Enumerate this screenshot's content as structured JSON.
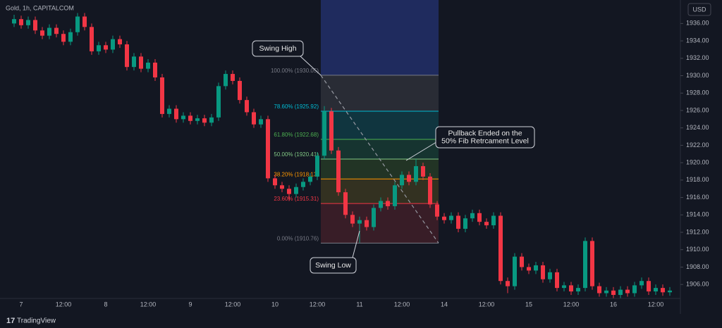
{
  "header": {
    "symbol": "Gold, 1h, CAPITALCOM",
    "currency": "USD"
  },
  "footer": {
    "brand": "TradingView"
  },
  "chart_data": {
    "type": "candlestick",
    "categories": [
      null,
      "7",
      null,
      null,
      null,
      null,
      null,
      "12:00",
      null,
      null,
      null,
      null,
      null,
      "8",
      null,
      null,
      null,
      null,
      null,
      "12:00",
      null,
      null,
      null,
      null,
      null,
      "9",
      null,
      null,
      null,
      null,
      null,
      "12:00",
      null,
      null,
      null,
      null,
      null,
      "10",
      null,
      null,
      null,
      null,
      null,
      "12:00",
      null,
      null,
      null,
      null,
      null,
      "11",
      null,
      null,
      null,
      null,
      null,
      "12:00",
      null,
      null,
      null,
      null,
      null,
      "14",
      null,
      null,
      null,
      null,
      null,
      "12:00",
      null,
      null,
      null,
      null,
      null,
      "15",
      null,
      null,
      null,
      null,
      null,
      "12:00",
      null,
      null,
      null,
      null,
      null,
      "16",
      null,
      null,
      null,
      null,
      null,
      "12:00",
      null,
      null
    ],
    "open": [
      1936.0,
      1936.5,
      1935.8,
      1936.4,
      1935.2,
      1934.6,
      1935.5,
      1934.8,
      1933.9,
      1935.0,
      1936.8,
      1935.6,
      1932.8,
      1933.5,
      1933.0,
      1934.2,
      1933.6,
      1931.0,
      1932.2,
      1930.8,
      1931.5,
      1929.8,
      1925.6,
      1926.2,
      1925.0,
      1925.4,
      1924.8,
      1925.1,
      1924.6,
      1925.2,
      1928.8,
      1930.2,
      1929.4,
      1927.2,
      1925.8,
      1924.4,
      1925.0,
      1918.2,
      1917.4,
      1917.0,
      1916.4,
      1917.2,
      1917.8,
      1918.4,
      1920.8,
      1925.9,
      1921.4,
      1916.6,
      1914.0,
      1913.0,
      1913.4,
      1912.6,
      1914.8,
      1915.6,
      1915.0,
      1917.4,
      1918.6,
      1917.8,
      1919.6,
      1918.4,
      1915.2,
      1913.8,
      1913.4,
      1913.9,
      1912.4,
      1913.6,
      1914.2,
      1913.2,
      1912.8,
      1913.9,
      1906.4,
      1905.8,
      1909.2,
      1908.0,
      1907.6,
      1908.2,
      1906.6,
      1907.4,
      1905.6,
      1905.9,
      1905.2,
      1905.6,
      1911.0,
      1905.8,
      1905.0,
      1905.3,
      1904.8,
      1905.4,
      1905.0,
      1905.9,
      1906.4,
      1905.2,
      1905.6,
      1905.1
    ],
    "high": [
      1937.0,
      1936.9,
      1936.8,
      1936.8,
      1935.6,
      1935.9,
      1935.9,
      1935.2,
      1935.4,
      1937.2,
      1937.2,
      1936.0,
      1933.9,
      1933.9,
      1934.6,
      1934.6,
      1934.0,
      1932.6,
      1932.6,
      1931.9,
      1931.9,
      1930.2,
      1926.6,
      1926.6,
      1925.8,
      1925.8,
      1925.5,
      1925.5,
      1925.6,
      1929.2,
      1930.6,
      1930.6,
      1929.8,
      1927.6,
      1926.2,
      1925.4,
      1925.4,
      1918.6,
      1917.8,
      1917.4,
      1917.6,
      1918.2,
      1918.8,
      1921.2,
      1926.5,
      1926.3,
      1921.8,
      1917.0,
      1914.4,
      1913.8,
      1913.8,
      1915.2,
      1916.0,
      1916.0,
      1917.8,
      1919.0,
      1919.0,
      1920.4,
      1920.0,
      1918.8,
      1915.6,
      1914.2,
      1914.3,
      1914.3,
      1914.0,
      1914.6,
      1914.6,
      1913.6,
      1914.3,
      1914.3,
      1906.8,
      1909.6,
      1909.6,
      1908.4,
      1908.6,
      1908.6,
      1907.8,
      1907.8,
      1906.3,
      1906.3,
      1906.0,
      1911.4,
      1911.4,
      1906.2,
      1905.7,
      1905.7,
      1905.8,
      1905.8,
      1906.3,
      1906.8,
      1906.8,
      1906.0,
      1906.0,
      1905.7
    ],
    "low": [
      1935.6,
      1935.4,
      1935.4,
      1934.8,
      1934.2,
      1934.2,
      1934.4,
      1933.5,
      1933.5,
      1934.6,
      1935.2,
      1932.4,
      1932.4,
      1932.6,
      1932.6,
      1933.2,
      1930.6,
      1930.6,
      1930.4,
      1930.4,
      1929.4,
      1925.2,
      1925.2,
      1924.6,
      1924.6,
      1924.4,
      1924.4,
      1924.2,
      1924.2,
      1924.8,
      1928.4,
      1929.0,
      1926.8,
      1925.4,
      1924.0,
      1924.0,
      1917.8,
      1917.0,
      1916.6,
      1915.6,
      1916.0,
      1916.8,
      1917.4,
      1918.0,
      1920.4,
      1921.0,
      1916.2,
      1913.6,
      1912.6,
      1910.8,
      1912.2,
      1912.2,
      1914.4,
      1914.6,
      1914.6,
      1917.0,
      1917.4,
      1917.4,
      1918.0,
      1914.8,
      1913.4,
      1913.0,
      1913.0,
      1912.0,
      1912.0,
      1913.2,
      1912.8,
      1912.4,
      1912.4,
      1906.0,
      1905.0,
      1905.4,
      1907.6,
      1907.2,
      1907.2,
      1906.2,
      1906.2,
      1905.2,
      1905.2,
      1904.8,
      1904.8,
      1905.2,
      1905.4,
      1904.6,
      1904.6,
      1904.4,
      1904.4,
      1904.6,
      1904.6,
      1905.5,
      1904.8,
      1904.8,
      1904.7,
      1904.7
    ],
    "close": [
      1936.5,
      1935.8,
      1936.4,
      1935.2,
      1934.6,
      1935.5,
      1934.8,
      1933.9,
      1935.0,
      1936.8,
      1935.6,
      1932.8,
      1933.5,
      1933.0,
      1934.2,
      1933.6,
      1931.0,
      1932.2,
      1930.8,
      1931.5,
      1929.8,
      1925.6,
      1926.2,
      1925.0,
      1925.4,
      1924.8,
      1925.1,
      1924.6,
      1925.2,
      1928.8,
      1930.2,
      1929.4,
      1927.2,
      1925.8,
      1924.4,
      1925.0,
      1918.2,
      1917.4,
      1917.0,
      1916.4,
      1917.2,
      1917.8,
      1918.4,
      1920.8,
      1925.9,
      1921.4,
      1916.6,
      1914.0,
      1913.0,
      1913.4,
      1912.6,
      1914.8,
      1915.6,
      1915.0,
      1917.4,
      1918.6,
      1917.8,
      1919.6,
      1918.4,
      1915.2,
      1913.8,
      1913.4,
      1913.9,
      1912.4,
      1913.6,
      1914.2,
      1913.2,
      1912.8,
      1913.9,
      1906.4,
      1905.8,
      1909.2,
      1908.0,
      1907.6,
      1908.2,
      1906.6,
      1907.4,
      1905.6,
      1905.9,
      1905.2,
      1905.6,
      1911.0,
      1905.8,
      1905.0,
      1905.3,
      1904.8,
      1905.4,
      1905.0,
      1905.9,
      1906.4,
      1905.2,
      1905.6,
      1905.1,
      1905.3
    ],
    "up_color": "#089981",
    "down_color": "#f23645",
    "ylim": [
      1903.1,
      1938.7
    ],
    "yticks": [
      {
        "value": 1906,
        "label": "1906.00"
      },
      {
        "value": 1908,
        "label": "1908.00"
      },
      {
        "value": 1910,
        "label": "1910.00"
      },
      {
        "value": 1912,
        "label": "1912.00"
      },
      {
        "value": 1914,
        "label": "1914.00"
      },
      {
        "value": 1916,
        "label": "1916.00"
      },
      {
        "value": 1918,
        "label": "1918.00"
      },
      {
        "value": 1920,
        "label": "1920.00"
      },
      {
        "value": 1922,
        "label": "1922.00"
      },
      {
        "value": 1924,
        "label": "1924.00"
      },
      {
        "value": 1926,
        "label": "1926.00"
      },
      {
        "value": 1928,
        "label": "1928.00"
      },
      {
        "value": 1930,
        "label": "1930.00"
      },
      {
        "value": 1932,
        "label": "1932.00"
      },
      {
        "value": 1934,
        "label": "1934.00"
      },
      {
        "value": 1936,
        "label": "1936.00"
      }
    ],
    "fib": {
      "extension_fill": "#1f2b5e",
      "levels": [
        {
          "value": 1930.05,
          "label": "100.00% (1930.05)",
          "color": "#787b86",
          "fill": "#2e3038"
        },
        {
          "value": 1925.92,
          "label": "78.60% (1925.92)",
          "color": "#00bcd4",
          "fill": "#113b44"
        },
        {
          "value": 1922.68,
          "label": "61.80% (1922.68)",
          "color": "#4caf50",
          "fill": "#173a33"
        },
        {
          "value": 1920.41,
          "label": "50.00% (1920.41)",
          "color": "#81c784",
          "fill": "#263a26"
        },
        {
          "value": 1918.13,
          "label": "38.20% (1918.13)",
          "color": "#ff9800",
          "fill": "#3a3621"
        },
        {
          "value": 1915.31,
          "label": "23.60% (1915.31)",
          "color": "#f23645",
          "fill": "#3f1f28"
        },
        {
          "value": 1910.76,
          "label": "0.00% (1910.76)",
          "color": "#787b86"
        }
      ]
    },
    "annotations": {
      "swing_high": "Swing High",
      "swing_low": "Swing Low",
      "pullback": [
        "Pullback Ended on the",
        "50% Fib Retrcament Level"
      ]
    }
  }
}
